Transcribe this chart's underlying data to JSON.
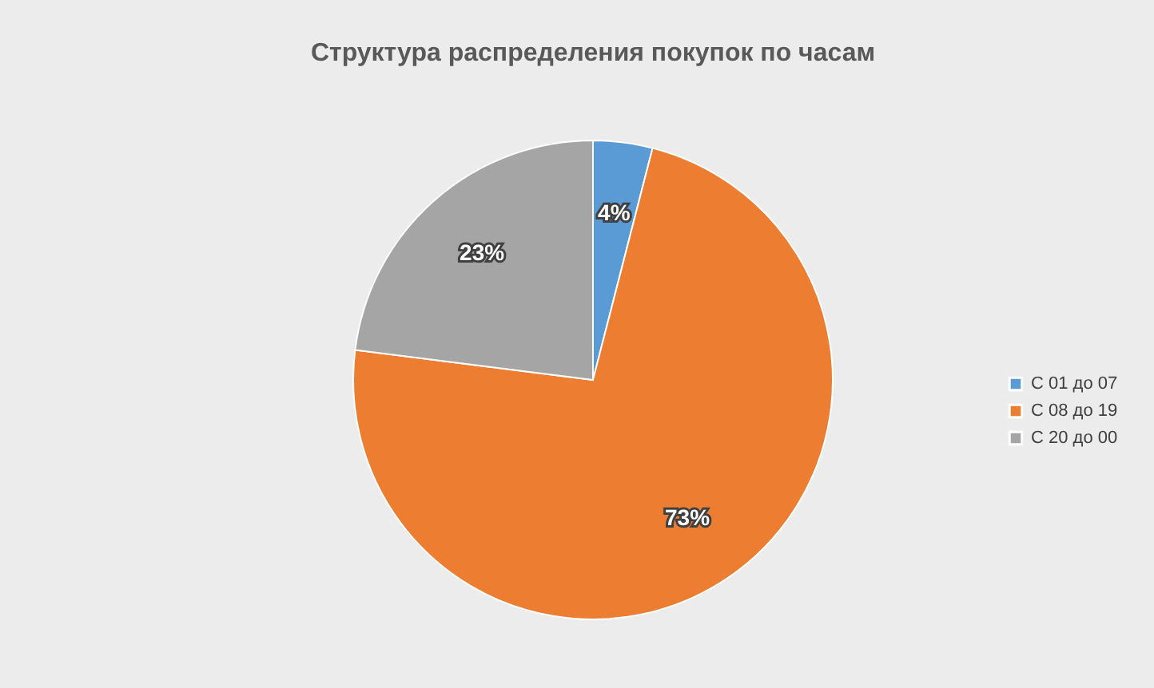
{
  "chart_data": {
    "type": "pie",
    "title": "Структура распределения покупок по часам",
    "categories": [
      "С 01 до 07",
      "С 08 до 19",
      "С 20 до 00"
    ],
    "values": [
      4,
      73,
      23
    ],
    "colors": [
      "#5b9bd5",
      "#ed7d31",
      "#a5a5a5"
    ],
    "value_labels": [
      "4%",
      "73%",
      "23%"
    ],
    "legend": "right"
  }
}
